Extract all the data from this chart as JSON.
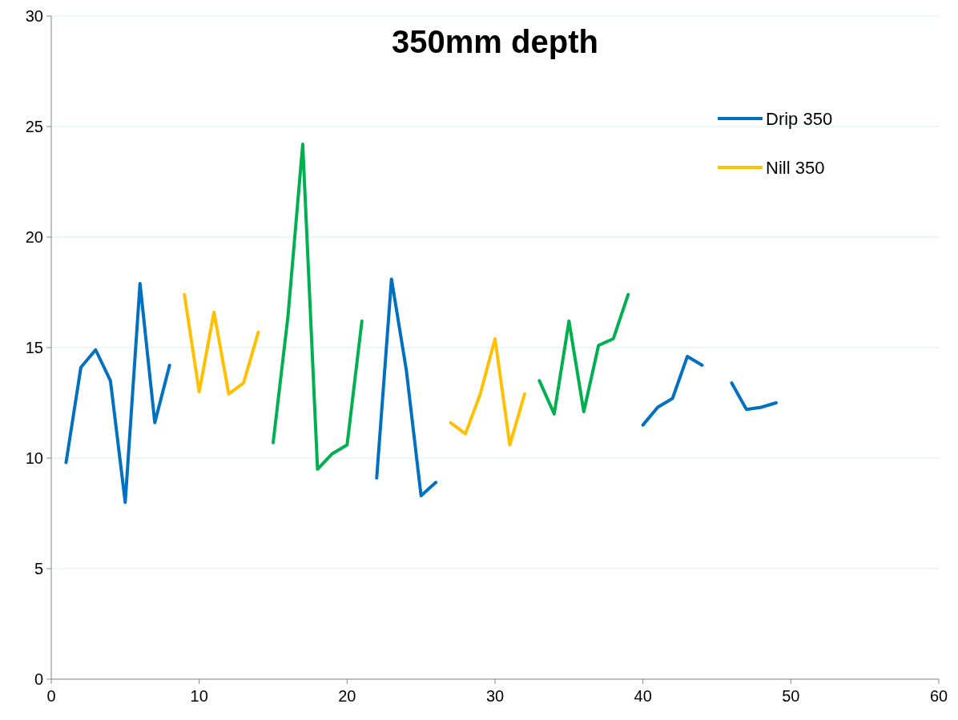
{
  "chart_data": {
    "type": "line",
    "title": "350mm depth",
    "xlim": [
      0,
      60
    ],
    "xticks": [
      0,
      10,
      20,
      30,
      40,
      50,
      60
    ],
    "ylim": [
      0,
      30
    ],
    "yticks": [
      0,
      5,
      10,
      15,
      20,
      25,
      30
    ],
    "grid": "y",
    "legend": "top right",
    "marker": "none",
    "line_style": "solid",
    "series": [
      {
        "name": "Drip 350",
        "color": "#0070c0",
        "x": [
          1,
          2,
          3,
          4,
          5,
          6,
          7,
          8,
          9,
          22,
          23,
          24,
          25,
          26,
          27,
          40,
          41,
          42,
          43,
          44,
          45,
          46,
          47,
          48,
          49
        ],
        "values": [
          9.8,
          14.1,
          14.9,
          13.5,
          8.0,
          17.9,
          11.6,
          14.2,
          null,
          9.1,
          18.1,
          14.0,
          8.3,
          8.9,
          null,
          11.5,
          12.3,
          12.7,
          14.6,
          14.2,
          null,
          13.4,
          12.2,
          12.3,
          12.5
        ]
      },
      {
        "name": "Nill 350",
        "color": "#ffc000",
        "x": [
          9,
          10,
          11,
          12,
          13,
          14,
          15,
          27,
          28,
          29,
          30,
          31,
          32
        ],
        "values": [
          17.4,
          13.0,
          16.6,
          12.9,
          13.4,
          15.7,
          null,
          11.6,
          11.1,
          12.9,
          15.4,
          10.6,
          12.9
        ]
      },
      {
        "color": "#00b050",
        "x": [
          15,
          16,
          17,
          18,
          19,
          20,
          21,
          22,
          33,
          34,
          35,
          36,
          37,
          38,
          39
        ],
        "values": [
          10.7,
          16.4,
          24.2,
          9.5,
          10.2,
          10.6,
          16.2,
          null,
          13.5,
          12.0,
          16.2,
          12.1,
          15.1,
          15.4,
          17.4
        ]
      }
    ]
  }
}
